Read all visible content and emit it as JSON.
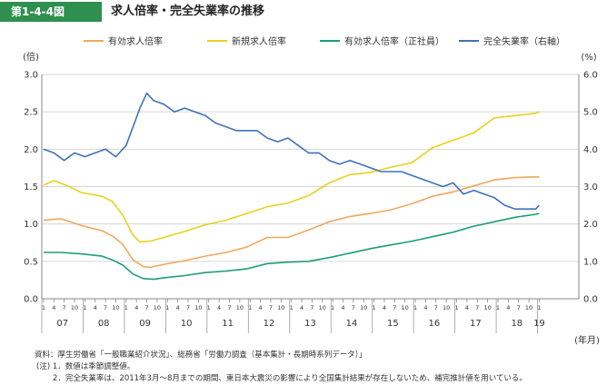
{
  "figure": {
    "number": "第1-4-4図",
    "title": "求人倍率・完全失業率の推移"
  },
  "chart_data": {
    "type": "line",
    "left_axis_unit": "(倍)",
    "right_axis_unit": "(%)",
    "x_axis_unit": "(年月)",
    "left_ylim": [
      0,
      3.0
    ],
    "right_ylim": [
      0,
      6.0
    ],
    "left_ticks": [
      "0.0",
      "0.5",
      "1.0",
      "1.5",
      "2.0",
      "2.5",
      "3.0"
    ],
    "right_ticks": [
      "0.0",
      "1.0",
      "2.0",
      "3.0",
      "4.0",
      "5.0",
      "6.0"
    ],
    "years": [
      "07",
      "08",
      "09",
      "10",
      "11",
      "12",
      "13",
      "14",
      "15",
      "16",
      "17",
      "18",
      "19"
    ],
    "month_ticks": [
      "1",
      "4",
      "7",
      "10"
    ],
    "grid": true,
    "legend_position": "top",
    "series": [
      {
        "name": "有効求人倍率",
        "axis": "left",
        "color": "#f0a860",
        "x": [
          "2007-01",
          "2007-06",
          "2007-12",
          "2008-06",
          "2008-09",
          "2008-12",
          "2009-03",
          "2009-06",
          "2009-08",
          "2009-12",
          "2010-06",
          "2010-12",
          "2011-06",
          "2011-12",
          "2012-06",
          "2012-12",
          "2013-06",
          "2013-12",
          "2014-06",
          "2014-12",
          "2015-06",
          "2015-12",
          "2016-06",
          "2016-12",
          "2017-06",
          "2017-12",
          "2018-06",
          "2018-12",
          "2019-01"
        ],
        "values": [
          1.05,
          1.07,
          0.98,
          0.91,
          0.84,
          0.73,
          0.52,
          0.43,
          0.42,
          0.46,
          0.51,
          0.57,
          0.62,
          0.69,
          0.82,
          0.82,
          0.92,
          1.03,
          1.1,
          1.14,
          1.19,
          1.27,
          1.37,
          1.43,
          1.51,
          1.59,
          1.62,
          1.63,
          1.63
        ]
      },
      {
        "name": "新規求人倍率",
        "axis": "left",
        "color": "#e8d21e",
        "x": [
          "2007-01",
          "2007-04",
          "2007-08",
          "2007-12",
          "2008-06",
          "2008-09",
          "2008-12",
          "2009-03",
          "2009-05",
          "2009-08",
          "2009-12",
          "2010-06",
          "2010-12",
          "2011-06",
          "2011-12",
          "2012-06",
          "2012-12",
          "2013-06",
          "2013-12",
          "2014-06",
          "2014-12",
          "2015-06",
          "2015-12",
          "2016-06",
          "2016-12",
          "2017-06",
          "2017-12",
          "2018-06",
          "2018-12",
          "2019-01"
        ],
        "values": [
          1.52,
          1.58,
          1.51,
          1.42,
          1.37,
          1.3,
          1.12,
          0.85,
          0.76,
          0.77,
          0.82,
          0.9,
          0.99,
          1.05,
          1.14,
          1.23,
          1.28,
          1.38,
          1.55,
          1.66,
          1.69,
          1.76,
          1.82,
          2.02,
          2.12,
          2.22,
          2.42,
          2.45,
          2.48,
          2.5
        ]
      },
      {
        "name": "有効求人倍率（正社員）",
        "axis": "left",
        "color": "#1e9c7a",
        "x": [
          "2007-01",
          "2007-06",
          "2007-12",
          "2008-06",
          "2008-09",
          "2008-12",
          "2009-03",
          "2009-06",
          "2009-09",
          "2009-12",
          "2010-06",
          "2010-12",
          "2011-06",
          "2011-12",
          "2012-06",
          "2012-12",
          "2013-06",
          "2013-12",
          "2014-06",
          "2014-12",
          "2015-06",
          "2015-12",
          "2016-06",
          "2016-12",
          "2017-06",
          "2017-12",
          "2018-06",
          "2018-12",
          "2019-01"
        ],
        "values": [
          0.62,
          0.62,
          0.6,
          0.57,
          0.52,
          0.45,
          0.33,
          0.27,
          0.26,
          0.28,
          0.31,
          0.35,
          0.37,
          0.4,
          0.47,
          0.49,
          0.5,
          0.55,
          0.61,
          0.67,
          0.72,
          0.77,
          0.83,
          0.89,
          0.97,
          1.03,
          1.09,
          1.13,
          1.14
        ]
      },
      {
        "name": "完全失業率（右軸）",
        "axis": "right",
        "color": "#3f72b8",
        "x": [
          "2007-01",
          "2007-04",
          "2007-07",
          "2007-10",
          "2008-01",
          "2008-04",
          "2008-07",
          "2008-10",
          "2009-01",
          "2009-03",
          "2009-05",
          "2009-07",
          "2009-09",
          "2009-12",
          "2010-03",
          "2010-06",
          "2010-09",
          "2010-12",
          "2011-03",
          "2011-06",
          "2011-09",
          "2011-12",
          "2012-03",
          "2012-06",
          "2012-09",
          "2012-12",
          "2013-03",
          "2013-06",
          "2013-09",
          "2013-12",
          "2014-03",
          "2014-06",
          "2014-09",
          "2014-12",
          "2015-03",
          "2015-06",
          "2015-09",
          "2015-12",
          "2016-03",
          "2016-06",
          "2016-09",
          "2016-12",
          "2017-03",
          "2017-06",
          "2017-09",
          "2017-12",
          "2018-03",
          "2018-06",
          "2018-09",
          "2018-12",
          "2019-01"
        ],
        "values": [
          4.0,
          3.9,
          3.7,
          3.9,
          3.8,
          3.9,
          4.0,
          3.8,
          4.1,
          4.6,
          5.1,
          5.5,
          5.3,
          5.2,
          5.0,
          5.1,
          5.0,
          4.9,
          4.7,
          4.6,
          4.5,
          4.5,
          4.5,
          4.3,
          4.2,
          4.3,
          4.1,
          3.9,
          3.9,
          3.7,
          3.6,
          3.7,
          3.6,
          3.5,
          3.4,
          3.4,
          3.4,
          3.3,
          3.2,
          3.1,
          3.0,
          3.1,
          2.8,
          2.9,
          2.8,
          2.7,
          2.5,
          2.4,
          2.4,
          2.4,
          2.5
        ]
      }
    ]
  },
  "notes": {
    "source": "資料：厚生労働省「一般職業紹介状況」、総務省「労働力調査（基本集計・長期時系列データ）」",
    "note1": "(注) 1．数値は季節調整値。",
    "note2": "2．完全失業率は、2011年3月～8月までの期間、東日本大震災の影響により全国集計結果が存在しないため、補完推計値を用いている。"
  }
}
